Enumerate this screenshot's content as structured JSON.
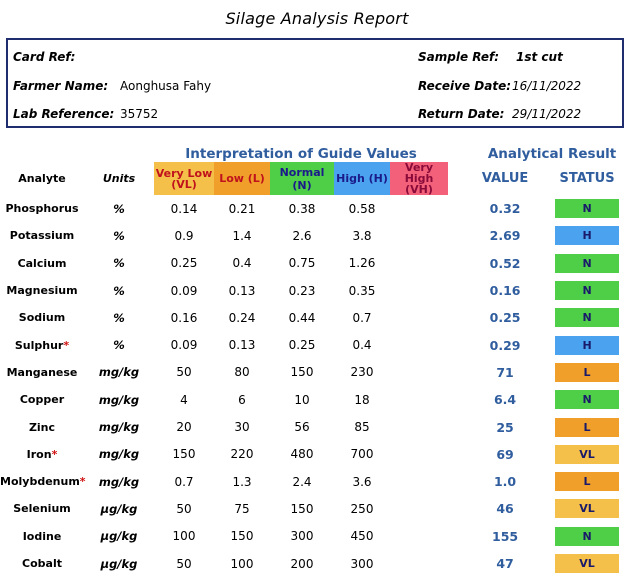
{
  "title": "Silage Analysis Report",
  "info": {
    "card_ref_label": "Card Ref:",
    "card_ref_value": "",
    "sample_ref_label": "Sample Ref:",
    "sample_ref_value": "1st cut",
    "farmer_name_label": "Farmer Name:",
    "farmer_name_value": "Aonghusa Fahy",
    "receive_date_label": "Receive Date:",
    "receive_date_value": "16/11/2022",
    "lab_reference_label": "Lab Reference:",
    "lab_reference_value": "35752",
    "return_date_label": "Return Date:",
    "return_date_value": "29/11/2022"
  },
  "table": {
    "group_interpretation": "Interpretation of Guide Values",
    "group_result": "Analytical Result",
    "headers": {
      "analyte": "Analyte",
      "units": "Units",
      "very_low": "Very Low (VL)",
      "low": "Low (L)",
      "normal": "Normal (N)",
      "high": "High (H)",
      "very_high": "Very High (VH)",
      "value": "VALUE",
      "status": "STATUS"
    },
    "colors": {
      "N": "#4fcf48",
      "H": "#4ba3f0",
      "L": "#f0a02a",
      "VL": "#f5c04a",
      "VH": "#f2607a",
      "result_text": "#2f5d9e"
    },
    "rows": [
      {
        "analyte": "Phosphorus",
        "star": "",
        "units": "%",
        "vl": "0.14",
        "l": "0.21",
        "n": "0.38",
        "h": "0.58",
        "value": "0.32",
        "status": "N"
      },
      {
        "analyte": "Potassium",
        "star": "",
        "units": "%",
        "vl": "0.9",
        "l": "1.4",
        "n": "2.6",
        "h": "3.8",
        "value": "2.69",
        "status": "H"
      },
      {
        "analyte": "Calcium",
        "star": "",
        "units": "%",
        "vl": "0.25",
        "l": "0.4",
        "n": "0.75",
        "h": "1.26",
        "value": "0.52",
        "status": "N"
      },
      {
        "analyte": "Magnesium",
        "star": "",
        "units": "%",
        "vl": "0.09",
        "l": "0.13",
        "n": "0.23",
        "h": "0.35",
        "value": "0.16",
        "status": "N"
      },
      {
        "analyte": "Sodium",
        "star": "",
        "units": "%",
        "vl": "0.16",
        "l": "0.24",
        "n": "0.44",
        "h": "0.7",
        "value": "0.25",
        "status": "N"
      },
      {
        "analyte": "Sulphur",
        "star": "*",
        "units": "%",
        "vl": "0.09",
        "l": "0.13",
        "n": "0.25",
        "h": "0.4",
        "value": "0.29",
        "status": "H"
      },
      {
        "analyte": "Manganese",
        "star": "",
        "units": "mg/kg",
        "vl": "50",
        "l": "80",
        "n": "150",
        "h": "230",
        "value": "71",
        "status": "L"
      },
      {
        "analyte": "Copper",
        "star": "",
        "units": "mg/kg",
        "vl": "4",
        "l": "6",
        "n": "10",
        "h": "18",
        "value": "6.4",
        "status": "N"
      },
      {
        "analyte": "Zinc",
        "star": "",
        "units": "mg/kg",
        "vl": "20",
        "l": "30",
        "n": "56",
        "h": "85",
        "value": "25",
        "status": "L"
      },
      {
        "analyte": "Iron",
        "star": "*",
        "units": "mg/kg",
        "vl": "150",
        "l": "220",
        "n": "480",
        "h": "700",
        "value": "69",
        "status": "VL"
      },
      {
        "analyte": "Molybdenum",
        "star": "*",
        "units": "mg/kg",
        "vl": "0.7",
        "l": "1.3",
        "n": "2.4",
        "h": "3.6",
        "value": "1.0",
        "status": "L"
      },
      {
        "analyte": "Selenium",
        "star": "",
        "units": "μg/kg",
        "vl": "50",
        "l": "75",
        "n": "150",
        "h": "250",
        "value": "46",
        "status": "VL"
      },
      {
        "analyte": "Iodine",
        "star": "",
        "units": "μg/kg",
        "vl": "100",
        "l": "150",
        "n": "300",
        "h": "450",
        "value": "155",
        "status": "N"
      },
      {
        "analyte": "Cobalt",
        "star": "",
        "units": "μg/kg",
        "vl": "50",
        "l": "100",
        "n": "200",
        "h": "300",
        "value": "47",
        "status": "VL"
      }
    ]
  }
}
